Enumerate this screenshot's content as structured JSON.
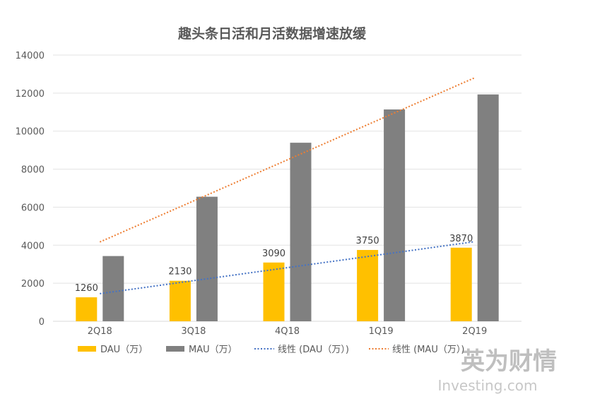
{
  "chart_data": {
    "type": "bar",
    "title": "趣头条日活和月活数据增速放缓",
    "categories": [
      "2Q18",
      "3Q18",
      "4Q18",
      "1Q19",
      "2Q19"
    ],
    "series": [
      {
        "name": "DAU（万）",
        "values": [
          1260,
          2130,
          3090,
          3750,
          3870
        ],
        "color": "#ffc000",
        "data_labels": [
          "1260",
          "2130",
          "3090",
          "3750",
          "3870"
        ]
      },
      {
        "name": "MAU（万）",
        "values": [
          3430,
          6550,
          9390,
          11140,
          11930
        ],
        "color": "#808080"
      }
    ],
    "trendlines": [
      {
        "name": "线性 (DAU（万）)",
        "series": 0,
        "color": "#4472c4",
        "style": "dotted"
      },
      {
        "name": "线性 (MAU（万）)",
        "series": 1,
        "color": "#ed7d31",
        "style": "dotted"
      }
    ],
    "ylim": [
      0,
      14000
    ],
    "yticks": [
      0,
      2000,
      4000,
      6000,
      8000,
      10000,
      12000,
      14000
    ],
    "ytick_labels": [
      "0",
      "2000",
      "4000",
      "6000",
      "8000",
      "10000",
      "12000",
      "14000"
    ],
    "grid": true,
    "legend_position": "bottom",
    "xlabel": "",
    "ylabel": ""
  },
  "watermark": {
    "logo_text": "英为财情",
    "sub_text": "Investing.com"
  }
}
